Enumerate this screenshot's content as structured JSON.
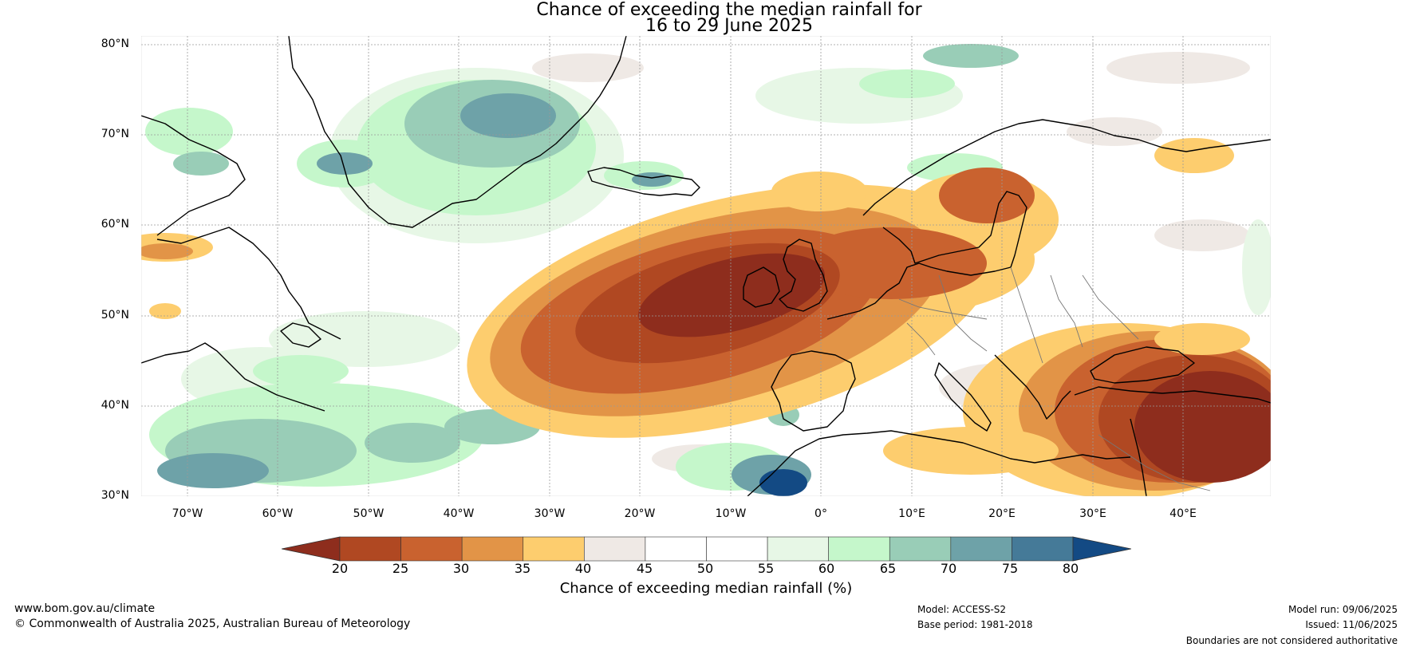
{
  "title": {
    "line1": "Chance of exceeding the median rainfall for",
    "line2": "16 to 29 June 2025"
  },
  "map": {
    "lat_labels": [
      "80°N",
      "70°N",
      "60°N",
      "50°N",
      "40°N",
      "30°N"
    ],
    "lon_labels": [
      "70°W",
      "60°W",
      "50°W",
      "40°W",
      "30°W",
      "20°W",
      "10°W",
      "0°",
      "10°E",
      "20°E",
      "30°E",
      "40°E"
    ]
  },
  "colorbar": {
    "ticks": [
      "20",
      "25",
      "30",
      "35",
      "40",
      "45",
      "50",
      "55",
      "60",
      "65",
      "70",
      "75",
      "80"
    ],
    "label": "Chance of exceeding median rainfall (%)",
    "colors": [
      "#8e2d1d",
      "#b04822",
      "#c9622f",
      "#e29447",
      "#fdcd6e",
      "#efe9e5",
      "#ffffff",
      "#ffffff",
      "#e7f7e6",
      "#c5f7cb",
      "#99cdb7",
      "#6ea2a8",
      "#457a98",
      "#134a84"
    ]
  },
  "footer": {
    "website": "www.bom.gov.au/climate",
    "copyright": "© Commonwealth of Australia 2025, Australian Bureau of Meteorology",
    "model": "Model: ACCESS-S2",
    "base_period": "Base period: 1981-2018",
    "model_run": "Model run: 09/06/2025",
    "issued": "Issued: 11/06/2025",
    "disclaimer": "Boundaries are not considered authoritative"
  }
}
